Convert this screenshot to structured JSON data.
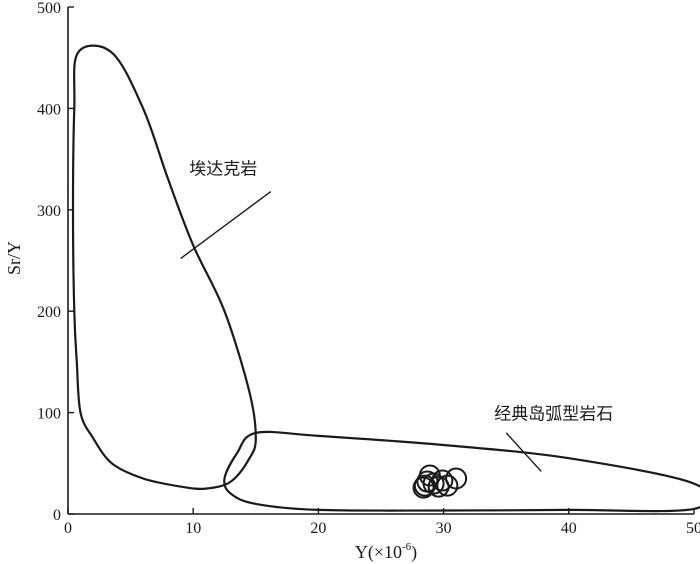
{
  "chart_data": {
    "type": "scatter",
    "title": "",
    "xlabel": "Y(×10",
    "xlabel_superscript": "-6",
    "xlabel_suffix": ")",
    "ylabel": "Sr/Y",
    "xlim": [
      0,
      50
    ],
    "ylim": [
      0,
      500
    ],
    "x_ticks": [
      0,
      10,
      20,
      30,
      40,
      50
    ],
    "y_ticks": [
      0,
      100,
      200,
      300,
      400,
      500
    ],
    "grid": false,
    "regions": [
      {
        "label": "埃达克岩",
        "boundary": [
          [
            0.8,
            455
          ],
          [
            0.5,
            400
          ],
          [
            0.4,
            300
          ],
          [
            0.5,
            200
          ],
          [
            0.7,
            150
          ],
          [
            1.0,
            100
          ],
          [
            2.0,
            75
          ],
          [
            3.5,
            50
          ],
          [
            6.0,
            35
          ],
          [
            9.0,
            27
          ],
          [
            11.0,
            25
          ],
          [
            13.0,
            32
          ],
          [
            14.5,
            55
          ],
          [
            15.0,
            75
          ],
          [
            14.5,
            120
          ],
          [
            12.5,
            200
          ],
          [
            10.0,
            265
          ],
          [
            8.0,
            330
          ],
          [
            6.0,
            400
          ],
          [
            3.5,
            455
          ]
        ],
        "label_at": [
          12.4,
          335
        ],
        "leader_from": [
          16.2,
          318
        ],
        "leader_to": [
          9.0,
          252
        ]
      },
      {
        "label": "经典岛弧型岩石",
        "boundary": [
          [
            15.0,
            80
          ],
          [
            20.0,
            77
          ],
          [
            30.0,
            68
          ],
          [
            40.0,
            55
          ],
          [
            50.0,
            30
          ],
          [
            50.0,
            5
          ],
          [
            40.0,
            4
          ],
          [
            30.0,
            3.5
          ],
          [
            20.0,
            4
          ],
          [
            15.0,
            10
          ],
          [
            13.0,
            20
          ],
          [
            12.5,
            35
          ],
          [
            13.5,
            60
          ]
        ],
        "label_at": [
          38.8,
          93
        ],
        "leader_from": [
          35.0,
          80
        ],
        "leader_to": [
          37.8,
          42
        ]
      }
    ],
    "series": [
      {
        "marker": "open-circle",
        "points": [
          [
            28.9,
            38
          ],
          [
            28.7,
            32
          ],
          [
            28.5,
            28
          ],
          [
            29.2,
            30
          ],
          [
            30.3,
            28
          ],
          [
            31.0,
            35
          ],
          [
            29.6,
            27
          ],
          [
            28.4,
            26
          ],
          [
            29.9,
            33
          ]
        ]
      }
    ]
  }
}
